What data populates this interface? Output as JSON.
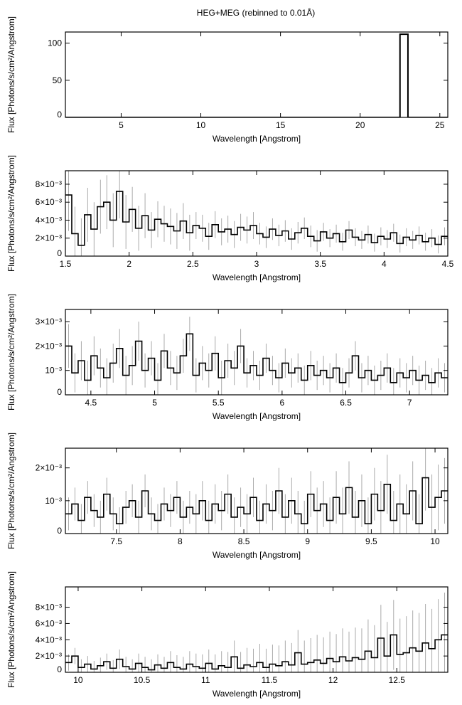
{
  "chart_data": {
    "type": "line",
    "title": "HEG+MEG (rebinned to 0.01Å)",
    "panels": [
      {
        "xlabel": "Wavelength [Angstrom]",
        "ylabel": "Flux [Photons/s/cm²/Angstrom]",
        "xlim": [
          1.5,
          25.5
        ],
        "ylim": [
          0,
          115
        ],
        "xticks": [
          5,
          10,
          15,
          20,
          25
        ],
        "xtick_labels": [
          "5",
          "10",
          "15",
          "20",
          "25"
        ],
        "yticks": [
          0,
          50,
          100
        ],
        "ytick_labels": [
          "0",
          "50",
          "100"
        ],
        "bin": 0.5,
        "x0": 1.5,
        "values": [
          0.003,
          0.002,
          0.002,
          0.001,
          0.001,
          0.001,
          0.001,
          0.001,
          0.001,
          0.001,
          0.001,
          0.001,
          0.001,
          0.001,
          0.001,
          0.001,
          0.001,
          0.001,
          0.001,
          0.001,
          0.001,
          0.001,
          0.001,
          0.001,
          0.001,
          0.001,
          0.001,
          0.001,
          0.001,
          0.001,
          0.001,
          0.001,
          0.001,
          0.001,
          0.001,
          0.001,
          0.001,
          0.001,
          0.001,
          0.001,
          0.001,
          0.001,
          112,
          0.001,
          0.001,
          0.001,
          0.001,
          0.001
        ],
        "errors": []
      },
      {
        "xlabel": "Wavelength [Angstrom]",
        "ylabel": "Flux [Photons/s/cm²/Angstrom]",
        "xlim": [
          1.5,
          4.5
        ],
        "ylim": [
          0,
          0.0095
        ],
        "xticks": [
          1.5,
          2,
          2.5,
          3,
          3.5,
          4,
          4.5
        ],
        "xtick_labels": [
          "1.5",
          "2",
          "2.5",
          "3",
          "3.5",
          "4",
          "4.5"
        ],
        "yticks": [
          0,
          0.002,
          0.004,
          0.006,
          0.008
        ],
        "ytick_labels": [
          "0",
          "2×10⁻³",
          "4×10⁻³",
          "6×10⁻³",
          "8×10⁻³"
        ],
        "bin": 0.05,
        "x0": 1.5,
        "values": [
          0.0068,
          0.0025,
          0.0012,
          0.0046,
          0.003,
          0.0055,
          0.006,
          0.004,
          0.0072,
          0.0038,
          0.0052,
          0.0031,
          0.0045,
          0.0029,
          0.0041,
          0.0036,
          0.0033,
          0.0028,
          0.0039,
          0.0026,
          0.0034,
          0.0031,
          0.0022,
          0.0035,
          0.0027,
          0.003,
          0.0024,
          0.0032,
          0.0029,
          0.0034,
          0.0025,
          0.0021,
          0.003,
          0.0023,
          0.0028,
          0.0019,
          0.0026,
          0.0031,
          0.0022,
          0.0017,
          0.0027,
          0.002,
          0.0025,
          0.0016,
          0.0029,
          0.0021,
          0.0018,
          0.0024,
          0.0015,
          0.0022,
          0.0019,
          0.0026,
          0.0014,
          0.0021,
          0.0018,
          0.0023,
          0.0016,
          0.002,
          0.0013,
          0.0022
        ],
        "errors": [
          0.004,
          0.003,
          0.003,
          0.003,
          0.003,
          0.003,
          0.003,
          0.003,
          0.003,
          0.003,
          0.0025,
          0.0025,
          0.0025,
          0.002,
          0.002,
          0.002,
          0.002,
          0.002,
          0.002,
          0.002,
          0.0015,
          0.0015,
          0.0015,
          0.0015,
          0.0015,
          0.0015,
          0.0015,
          0.0015,
          0.0015,
          0.0015,
          0.0012,
          0.0012,
          0.0012,
          0.0012,
          0.0012,
          0.0012,
          0.0012,
          0.0012,
          0.0012,
          0.0012,
          0.001,
          0.001,
          0.001,
          0.001,
          0.001,
          0.001,
          0.001,
          0.001,
          0.001,
          0.001,
          0.001,
          0.001,
          0.001,
          0.001,
          0.001,
          0.001,
          0.001,
          0.001,
          0.001,
          0.001
        ]
      },
      {
        "xlabel": "Wavelength [Angstrom]",
        "ylabel": "Flux [Photons/s/cm²/Angstrom]",
        "xlim": [
          4.3,
          7.3
        ],
        "ylim": [
          0,
          0.0035
        ],
        "xticks": [
          4.5,
          5,
          5.5,
          6,
          6.5,
          7
        ],
        "xtick_labels": [
          "4.5",
          "5",
          "5.5",
          "6",
          "6.5",
          "7"
        ],
        "yticks": [
          0,
          0.001,
          0.002,
          0.003
        ],
        "ytick_labels": [
          "0",
          "10⁻³",
          "2×10⁻³",
          "3×10⁻³"
        ],
        "bin": 0.05,
        "x0": 4.3,
        "values": [
          0.002,
          0.0009,
          0.0014,
          0.0006,
          0.0016,
          0.0011,
          0.0007,
          0.0013,
          0.0019,
          0.0008,
          0.0012,
          0.0022,
          0.001,
          0.0015,
          0.0006,
          0.0018,
          0.0011,
          0.0009,
          0.0016,
          0.0025,
          0.0008,
          0.0013,
          0.001,
          0.0017,
          0.0007,
          0.0014,
          0.0011,
          0.002,
          0.0009,
          0.0012,
          0.0008,
          0.0015,
          0.001,
          0.0007,
          0.0013,
          0.0009,
          0.0011,
          0.0006,
          0.0012,
          0.0008,
          0.001,
          0.0007,
          0.0011,
          0.0005,
          0.0009,
          0.0016,
          0.0007,
          0.001,
          0.0006,
          0.0008,
          0.0011,
          0.0005,
          0.0009,
          0.0007,
          0.001,
          0.0006,
          0.0008,
          0.0005,
          0.0009,
          0.0007
        ],
        "errors": [
          0.0009,
          0.0008,
          0.0008,
          0.0008,
          0.0008,
          0.0008,
          0.0008,
          0.0008,
          0.0008,
          0.0008,
          0.0008,
          0.0008,
          0.0007,
          0.0007,
          0.0007,
          0.0007,
          0.0007,
          0.0007,
          0.0007,
          0.0007,
          0.0007,
          0.0007,
          0.0007,
          0.0007,
          0.0007,
          0.0007,
          0.0007,
          0.0007,
          0.0006,
          0.0006,
          0.0006,
          0.0006,
          0.0006,
          0.0006,
          0.0006,
          0.0006,
          0.0006,
          0.0006,
          0.0006,
          0.0006,
          0.0006,
          0.0006,
          0.0006,
          0.0006,
          0.0006,
          0.0006,
          0.0006,
          0.0006,
          0.0006,
          0.0006,
          0.0006,
          0.0006,
          0.0006,
          0.0006,
          0.0006,
          0.0006,
          0.0006,
          0.0006,
          0.0006,
          0.0006
        ]
      },
      {
        "xlabel": "Wavelength [Angstrom]",
        "ylabel": "Flux [Photons/s/cm²/Angstrom]",
        "xlim": [
          7.1,
          10.1
        ],
        "ylim": [
          0,
          0.0026
        ],
        "xticks": [
          7.5,
          8,
          8.5,
          9,
          9.5,
          10
        ],
        "xtick_labels": [
          "7.5",
          "8",
          "8.5",
          "9",
          "9.5",
          "10"
        ],
        "yticks": [
          0,
          0.001,
          0.002
        ],
        "ytick_labels": [
          "0",
          "10⁻³",
          "2×10⁻³"
        ],
        "bin": 0.05,
        "x0": 7.1,
        "values": [
          0.0006,
          0.0009,
          0.0004,
          0.0011,
          0.0007,
          0.0005,
          0.0012,
          0.0006,
          0.0003,
          0.0008,
          0.001,
          0.0005,
          0.0013,
          0.0006,
          0.0004,
          0.0009,
          0.0007,
          0.0011,
          0.0005,
          0.0008,
          0.0006,
          0.001,
          0.0004,
          0.0009,
          0.0007,
          0.0012,
          0.0005,
          0.0008,
          0.0006,
          0.0011,
          0.0004,
          0.0009,
          0.0007,
          0.0013,
          0.0005,
          0.001,
          0.0006,
          0.0003,
          0.0012,
          0.0007,
          0.0009,
          0.0004,
          0.0011,
          0.0006,
          0.0014,
          0.0005,
          0.001,
          0.0003,
          0.0012,
          0.0007,
          0.0015,
          0.0004,
          0.0009,
          0.0006,
          0.0013,
          0.0003,
          0.0017,
          0.0008,
          0.0011,
          0.0013
        ],
        "errors": [
          0.0005,
          0.0005,
          0.0005,
          0.0005,
          0.0005,
          0.0005,
          0.0005,
          0.0005,
          0.0005,
          0.0005,
          0.0005,
          0.0005,
          0.0005,
          0.0005,
          0.0005,
          0.0005,
          0.0005,
          0.0005,
          0.0005,
          0.0005,
          0.0006,
          0.0006,
          0.0006,
          0.0006,
          0.0006,
          0.0006,
          0.0006,
          0.0006,
          0.0006,
          0.0006,
          0.0006,
          0.0006,
          0.0006,
          0.0007,
          0.0007,
          0.0007,
          0.0007,
          0.0007,
          0.0007,
          0.0007,
          0.0007,
          0.0007,
          0.0008,
          0.0008,
          0.0008,
          0.0008,
          0.0008,
          0.0008,
          0.0008,
          0.0009,
          0.0009,
          0.0009,
          0.0009,
          0.0009,
          0.0009,
          0.0009,
          0.001,
          0.001,
          0.001,
          0.001
        ]
      },
      {
        "xlabel": "Wavelength [Angstrom]",
        "ylabel": "Flux [Photons/s/cm²/Angstrom]",
        "xlim": [
          9.9,
          12.9
        ],
        "ylim": [
          0,
          0.0105
        ],
        "xticks": [
          10,
          10.5,
          11,
          11.5,
          12,
          12.5
        ],
        "xtick_labels": [
          "10",
          "10.5",
          "11",
          "11.5",
          "12",
          "12.5"
        ],
        "yticks": [
          0,
          0.002,
          0.004,
          0.006,
          0.008
        ],
        "ytick_labels": [
          "0",
          "2×10⁻³",
          "4×10⁻³",
          "6×10⁻³",
          "8×10⁻³"
        ],
        "bin": 0.05,
        "x0": 9.9,
        "values": [
          0.0012,
          0.002,
          0.0006,
          0.001,
          0.0004,
          0.0008,
          0.0013,
          0.0005,
          0.0016,
          0.0007,
          0.0004,
          0.0011,
          0.0006,
          0.0003,
          0.0009,
          0.0005,
          0.0012,
          0.0006,
          0.0004,
          0.001,
          0.0007,
          0.0005,
          0.0011,
          0.0004,
          0.0008,
          0.0006,
          0.0019,
          0.0005,
          0.0009,
          0.0007,
          0.0012,
          0.0006,
          0.001,
          0.0008,
          0.0013,
          0.0009,
          0.0024,
          0.001,
          0.0012,
          0.0015,
          0.0011,
          0.0017,
          0.0013,
          0.0019,
          0.0014,
          0.0018,
          0.0016,
          0.0026,
          0.0018,
          0.0042,
          0.002,
          0.0046,
          0.0022,
          0.0024,
          0.003,
          0.0026,
          0.0036,
          0.0029,
          0.004,
          0.0046
        ],
        "errors": [
          0.001,
          0.001,
          0.001,
          0.001,
          0.001,
          0.001,
          0.001,
          0.001,
          0.0012,
          0.0012,
          0.0012,
          0.0012,
          0.0013,
          0.0013,
          0.0013,
          0.0014,
          0.0014,
          0.0015,
          0.0015,
          0.0016,
          0.0016,
          0.0017,
          0.0017,
          0.0018,
          0.0018,
          0.0019,
          0.002,
          0.002,
          0.0021,
          0.0022,
          0.0023,
          0.0023,
          0.0024,
          0.0025,
          0.0026,
          0.0027,
          0.0028,
          0.0029,
          0.003,
          0.0031,
          0.0032,
          0.0033,
          0.0034,
          0.0035,
          0.0036,
          0.0037,
          0.0038,
          0.0039,
          0.004,
          0.0041,
          0.0042,
          0.0043,
          0.0044,
          0.0045,
          0.0046,
          0.0047,
          0.0048,
          0.0049,
          0.005,
          0.0052
        ]
      }
    ]
  }
}
